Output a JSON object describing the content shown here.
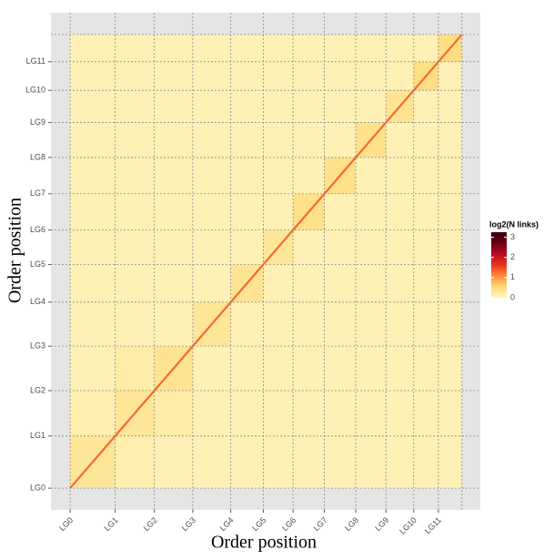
{
  "chart_data": {
    "type": "heatmap",
    "x_label": "Order position",
    "y_label": "Order position",
    "legend_title": "log2(N links)",
    "xlim": [
      -4.9,
      104.7
    ],
    "ylim": [
      -4.8,
      104.8
    ],
    "extent": [
      0,
      100
    ],
    "xticks": [
      {
        "value": 0,
        "label": "LG0"
      },
      {
        "value": 11.5,
        "label": "LG1"
      },
      {
        "value": 21.5,
        "label": "LG2"
      },
      {
        "value": 31.3,
        "label": "LG3"
      },
      {
        "value": 41,
        "label": "LG4"
      },
      {
        "value": 49.3,
        "label": "LG5"
      },
      {
        "value": 56.9,
        "label": "LG6"
      },
      {
        "value": 64.9,
        "label": "LG7"
      },
      {
        "value": 72.9,
        "label": "LG8"
      },
      {
        "value": 80.6,
        "label": "LG9"
      },
      {
        "value": 87.7,
        "label": "LG10"
      },
      {
        "value": 94,
        "label": "LG11"
      }
    ],
    "yticks": [
      {
        "value": 0,
        "label": "LG0"
      },
      {
        "value": 11.5,
        "label": "LG1"
      },
      {
        "value": 21.5,
        "label": "LG2"
      },
      {
        "value": 31.3,
        "label": "LG3"
      },
      {
        "value": 41,
        "label": "LG4"
      },
      {
        "value": 49.3,
        "label": "LG5"
      },
      {
        "value": 56.9,
        "label": "LG6"
      },
      {
        "value": 64.9,
        "label": "LG7"
      },
      {
        "value": 72.9,
        "label": "LG8"
      },
      {
        "value": 80.6,
        "label": "LG9"
      },
      {
        "value": 87.7,
        "label": "LG10"
      },
      {
        "value": 94,
        "label": "LG11"
      }
    ],
    "matrix": [
      [
        0.3,
        0.15,
        0.1,
        0.1,
        0.1,
        0.1,
        0.1,
        0.1,
        0.1,
        0.1,
        0.1,
        0.1
      ],
      [
        0.15,
        0.3,
        0.2,
        0.1,
        0.1,
        0.1,
        0.1,
        0.1,
        0.1,
        0.1,
        0.1,
        0.1
      ],
      [
        0.1,
        0.2,
        0.35,
        0.1,
        0.1,
        0.1,
        0.1,
        0.1,
        0.1,
        0.1,
        0.1,
        0.1
      ],
      [
        0.1,
        0.1,
        0.1,
        0.3,
        0.1,
        0.1,
        0.1,
        0.1,
        0.1,
        0.1,
        0.1,
        0.1
      ],
      [
        0.1,
        0.1,
        0.1,
        0.1,
        0.35,
        0.1,
        0.1,
        0.1,
        0.1,
        0.1,
        0.1,
        0.1
      ],
      [
        0.1,
        0.1,
        0.1,
        0.1,
        0.1,
        0.3,
        0.1,
        0.1,
        0.1,
        0.1,
        0.1,
        0.1
      ],
      [
        0.1,
        0.1,
        0.1,
        0.1,
        0.1,
        0.1,
        0.4,
        0.1,
        0.1,
        0.1,
        0.1,
        0.1
      ],
      [
        0.1,
        0.1,
        0.1,
        0.1,
        0.1,
        0.1,
        0.1,
        0.4,
        0.1,
        0.1,
        0.1,
        0.1
      ],
      [
        0.1,
        0.1,
        0.1,
        0.1,
        0.1,
        0.1,
        0.1,
        0.1,
        0.4,
        0.1,
        0.1,
        0.1
      ],
      [
        0.1,
        0.1,
        0.1,
        0.1,
        0.1,
        0.1,
        0.1,
        0.1,
        0.1,
        0.35,
        0.1,
        0.1
      ],
      [
        0.1,
        0.1,
        0.1,
        0.1,
        0.1,
        0.1,
        0.1,
        0.1,
        0.1,
        0.1,
        0.45,
        0.1
      ],
      [
        0.1,
        0.1,
        0.1,
        0.1,
        0.1,
        0.1,
        0.1,
        0.1,
        0.1,
        0.1,
        0.1,
        0.45
      ]
    ],
    "diagonal_value": 1.3,
    "clim": [
      0,
      3.25
    ],
    "cticks": [
      0,
      1,
      2,
      3
    ],
    "colors": [
      "#fff7c4",
      "#fed976",
      "#fd8d3c",
      "#e8341c",
      "#b80a26",
      "#6b0015",
      "#3a0008"
    ],
    "grid": true
  }
}
